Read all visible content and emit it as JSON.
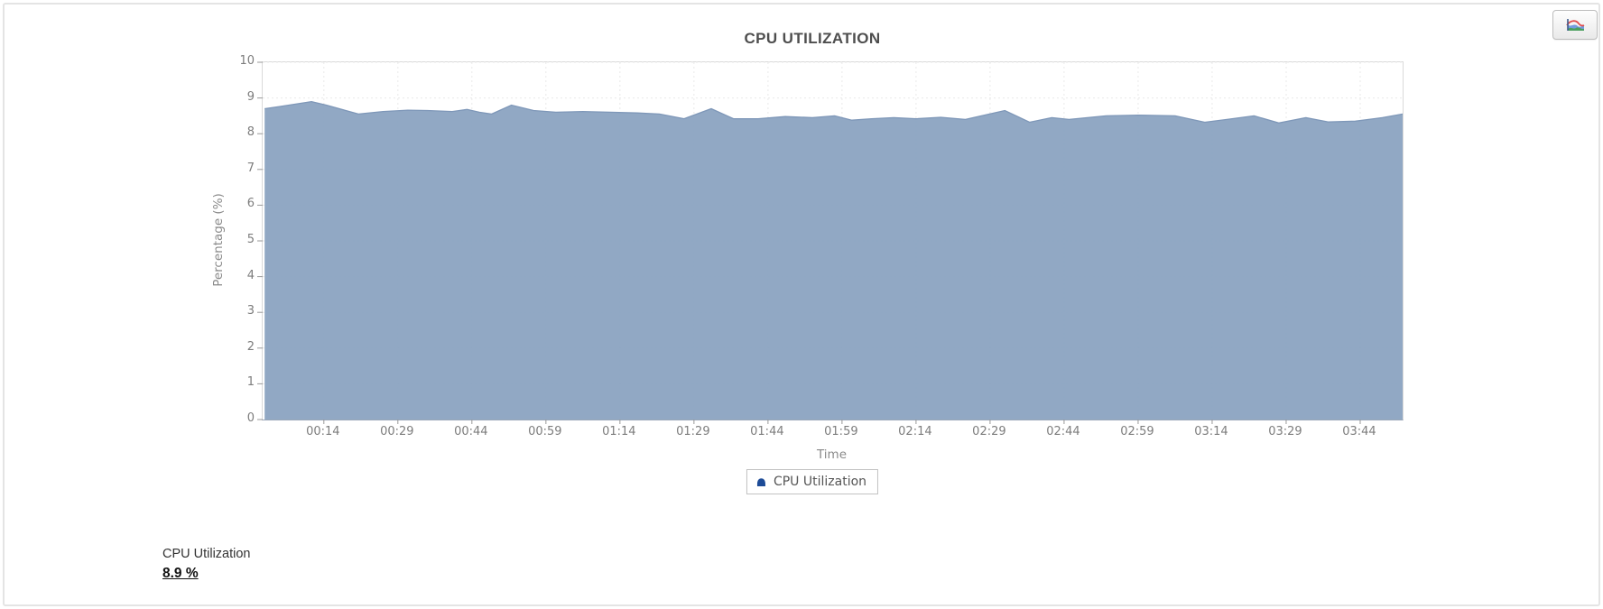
{
  "window": {
    "border_color": "#e4e4e4"
  },
  "header": {
    "title": "CPU UTILIZATION"
  },
  "toolbar": {
    "chart_type_icon": "area-chart-icon"
  },
  "chart_data": {
    "type": "area",
    "title": "CPU UTILIZATION",
    "xlabel": "Time",
    "ylabel": "Percentage (%)",
    "ylim": [
      0,
      10
    ],
    "grid": true,
    "legend_position": "bottom",
    "y_ticks": [
      0,
      1,
      2,
      3,
      4,
      5,
      6,
      7,
      8,
      9,
      10
    ],
    "x_domain_minutes": [
      1.6,
      232.6
    ],
    "x_ticks": [
      {
        "minute": 14,
        "label": "00:14"
      },
      {
        "minute": 29,
        "label": "00:29"
      },
      {
        "minute": 44,
        "label": "00:44"
      },
      {
        "minute": 59,
        "label": "00:59"
      },
      {
        "minute": 74,
        "label": "01:14"
      },
      {
        "minute": 89,
        "label": "01:29"
      },
      {
        "minute": 104,
        "label": "01:44"
      },
      {
        "minute": 119,
        "label": "01:59"
      },
      {
        "minute": 134,
        "label": "02:14"
      },
      {
        "minute": 149,
        "label": "02:29"
      },
      {
        "minute": 164,
        "label": "02:44"
      },
      {
        "minute": 179,
        "label": "02:59"
      },
      {
        "minute": 194,
        "label": "03:14"
      },
      {
        "minute": 209,
        "label": "03:29"
      },
      {
        "minute": 224,
        "label": "03:44"
      }
    ],
    "series": [
      {
        "name": "CPU Utilization",
        "color": "#8ba3c1",
        "edge_color": "#7e97b8",
        "legend_marker_color": "#1d4b97",
        "points": [
          [
            2,
            8.7
          ],
          [
            5,
            8.76
          ],
          [
            11.5,
            8.9
          ],
          [
            14.5,
            8.8
          ],
          [
            21,
            8.55
          ],
          [
            26,
            8.62
          ],
          [
            31,
            8.66
          ],
          [
            35,
            8.65
          ],
          [
            40,
            8.62
          ],
          [
            43,
            8.68
          ],
          [
            45.5,
            8.6
          ],
          [
            48,
            8.55
          ],
          [
            52,
            8.8
          ],
          [
            56.5,
            8.65
          ],
          [
            61,
            8.6
          ],
          [
            66.5,
            8.62
          ],
          [
            72,
            8.6
          ],
          [
            77.5,
            8.58
          ],
          [
            82,
            8.55
          ],
          [
            87,
            8.42
          ],
          [
            92.5,
            8.7
          ],
          [
            97,
            8.42
          ],
          [
            102,
            8.42
          ],
          [
            107.5,
            8.48
          ],
          [
            113,
            8.45
          ],
          [
            117.5,
            8.5
          ],
          [
            121,
            8.38
          ],
          [
            125,
            8.42
          ],
          [
            129.5,
            8.45
          ],
          [
            134,
            8.42
          ],
          [
            139,
            8.46
          ],
          [
            144,
            8.4
          ],
          [
            152,
            8.65
          ],
          [
            157,
            8.32
          ],
          [
            161.5,
            8.45
          ],
          [
            165,
            8.4
          ],
          [
            172.5,
            8.5
          ],
          [
            179,
            8.52
          ],
          [
            186.5,
            8.5
          ],
          [
            192.5,
            8.32
          ],
          [
            197,
            8.4
          ],
          [
            202.5,
            8.5
          ],
          [
            207.5,
            8.3
          ],
          [
            213,
            8.45
          ],
          [
            217.5,
            8.33
          ],
          [
            223,
            8.35
          ],
          [
            228.5,
            8.45
          ],
          [
            232.6,
            8.55
          ]
        ]
      }
    ],
    "grid_color": "#e9e9e9",
    "tick_color": "#999999"
  },
  "summary": {
    "label": "CPU Utilization",
    "value": "8.9 %"
  }
}
